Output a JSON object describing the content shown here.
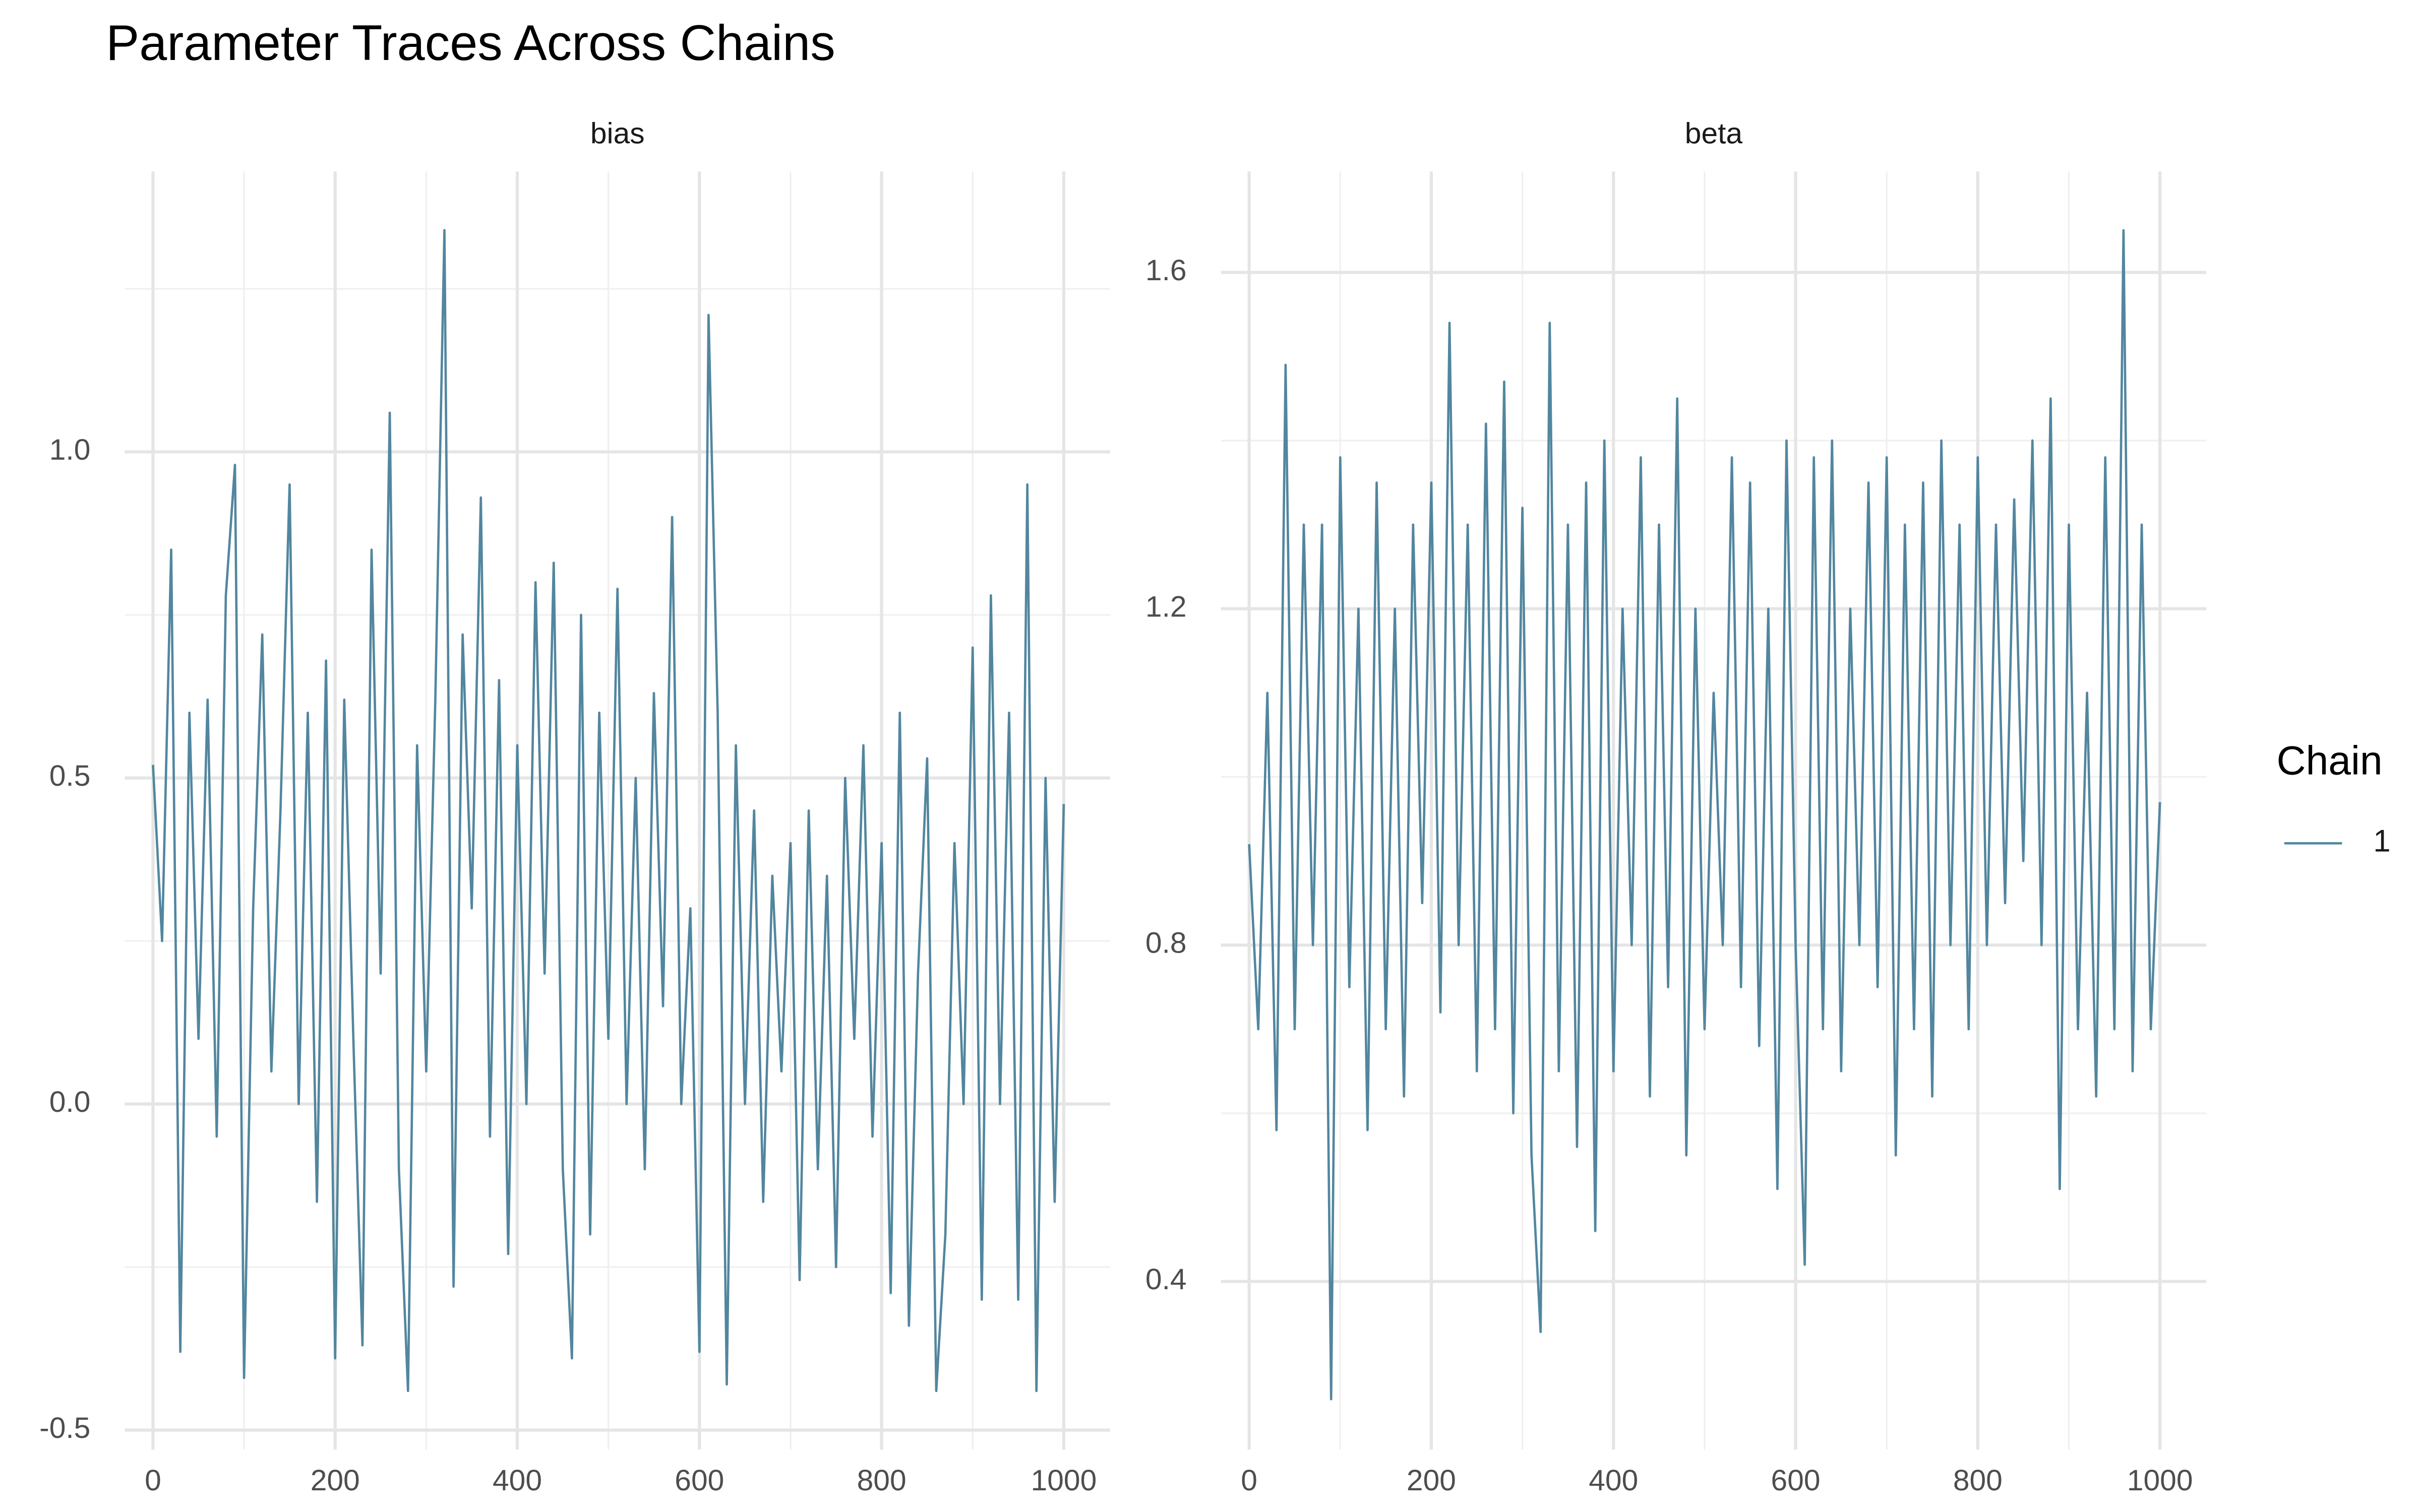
{
  "title": "Parameter Traces Across Chains",
  "legend_title": "Chain",
  "chart_data": [
    {
      "type": "line",
      "title": "bias",
      "x": [
        0,
        10,
        20,
        30,
        40,
        50,
        60,
        70,
        80,
        90,
        100,
        110,
        120,
        130,
        140,
        150,
        160,
        170,
        180,
        190,
        200,
        210,
        220,
        230,
        240,
        250,
        260,
        270,
        280,
        290,
        300,
        310,
        320,
        330,
        340,
        350,
        360,
        370,
        380,
        390,
        400,
        410,
        420,
        430,
        440,
        450,
        460,
        470,
        480,
        490,
        500,
        510,
        520,
        530,
        540,
        550,
        560,
        570,
        580,
        590,
        600,
        610,
        620,
        630,
        640,
        650,
        660,
        670,
        680,
        690,
        700,
        710,
        720,
        730,
        740,
        750,
        760,
        770,
        780,
        790,
        800,
        810,
        820,
        830,
        840,
        850,
        860,
        870,
        880,
        890,
        900,
        910,
        920,
        930,
        940,
        950,
        960,
        970,
        980,
        990,
        1000
      ],
      "series": [
        {
          "name": "1",
          "color": "#52869f",
          "values": [
            0.52,
            0.25,
            0.85,
            -0.38,
            0.6,
            0.1,
            0.62,
            -0.05,
            0.78,
            0.98,
            -0.42,
            0.3,
            0.72,
            0.05,
            0.45,
            0.95,
            0.0,
            0.6,
            -0.15,
            0.68,
            -0.39,
            0.62,
            0.1,
            -0.37,
            0.85,
            0.2,
            1.06,
            -0.1,
            -0.44,
            0.55,
            0.05,
            0.62,
            1.34,
            -0.28,
            0.72,
            0.3,
            0.93,
            -0.05,
            0.65,
            -0.23,
            0.55,
            0.0,
            0.8,
            0.2,
            0.83,
            -0.1,
            -0.39,
            0.75,
            -0.2,
            0.6,
            0.1,
            0.79,
            0.0,
            0.5,
            -0.1,
            0.63,
            0.15,
            0.9,
            0.0,
            0.3,
            -0.38,
            1.21,
            0.6,
            -0.43,
            0.55,
            0.0,
            0.45,
            -0.15,
            0.35,
            0.05,
            0.4,
            -0.27,
            0.45,
            -0.1,
            0.35,
            -0.25,
            0.5,
            0.1,
            0.55,
            -0.05,
            0.4,
            -0.29,
            0.6,
            -0.34,
            0.2,
            0.53,
            -0.44,
            -0.2,
            0.4,
            0.0,
            0.7,
            -0.3,
            0.78,
            0.0,
            0.6,
            -0.3,
            0.95,
            -0.44,
            0.5,
            -0.15,
            0.46
          ]
        }
      ],
      "xlim": [
        -31,
        1051
      ],
      "xticks": [
        0,
        200,
        400,
        600,
        800,
        1000
      ],
      "xminor": [
        100,
        300,
        500,
        700,
        900
      ],
      "ylim": [
        -0.53,
        1.43
      ],
      "yticks": [
        -0.5,
        {
          "value": 0,
          "label": "0.0"
        },
        0.5,
        {
          "value": 1,
          "label": "1.0"
        }
      ],
      "yminor": [
        -0.25,
        0.25,
        0.75,
        1.25
      ],
      "grid": true
    },
    {
      "type": "line",
      "title": "beta",
      "x": [
        0,
        10,
        20,
        30,
        40,
        50,
        60,
        70,
        80,
        90,
        100,
        110,
        120,
        130,
        140,
        150,
        160,
        170,
        180,
        190,
        200,
        210,
        220,
        230,
        240,
        250,
        260,
        270,
        280,
        290,
        300,
        310,
        320,
        330,
        340,
        350,
        360,
        370,
        380,
        390,
        400,
        410,
        420,
        430,
        440,
        450,
        460,
        470,
        480,
        490,
        500,
        510,
        520,
        530,
        540,
        550,
        560,
        570,
        580,
        590,
        600,
        610,
        620,
        630,
        640,
        650,
        660,
        670,
        680,
        690,
        700,
        710,
        720,
        730,
        740,
        750,
        760,
        770,
        780,
        790,
        800,
        810,
        820,
        830,
        840,
        850,
        860,
        870,
        880,
        890,
        900,
        910,
        920,
        930,
        940,
        950,
        960,
        970,
        980,
        990,
        1000
      ],
      "series": [
        {
          "color": "#52869f",
          "values": [
            0.92,
            0.7,
            1.1,
            0.58,
            1.49,
            0.7,
            1.3,
            0.8,
            1.3,
            0.26,
            1.38,
            0.75,
            1.2,
            0.58,
            1.35,
            0.7,
            1.2,
            0.62,
            1.3,
            0.85,
            1.35,
            0.72,
            1.54,
            0.8,
            1.3,
            0.65,
            1.42,
            0.7,
            1.47,
            0.6,
            1.32,
            0.55,
            0.34,
            1.54,
            0.65,
            1.3,
            0.56,
            1.35,
            0.46,
            1.4,
            0.65,
            1.2,
            0.8,
            1.38,
            0.62,
            1.3,
            0.75,
            1.45,
            0.55,
            1.2,
            0.7,
            1.1,
            0.8,
            1.38,
            0.75,
            1.35,
            0.68,
            1.2,
            0.51,
            1.4,
            0.8,
            0.42,
            1.38,
            0.7,
            1.4,
            0.65,
            1.2,
            0.8,
            1.35,
            0.75,
            1.38,
            0.55,
            1.3,
            0.7,
            1.35,
            0.62,
            1.4,
            0.8,
            1.3,
            0.7,
            1.38,
            0.8,
            1.3,
            0.85,
            1.33,
            0.9,
            1.4,
            0.8,
            1.45,
            0.51,
            1.3,
            0.7,
            1.1,
            0.62,
            1.38,
            0.7,
            1.65,
            0.65,
            1.3,
            0.7,
            0.97
          ]
        }
      ],
      "xlim": [
        -31,
        1051
      ],
      "xticks": [
        0,
        200,
        400,
        600,
        800,
        1000
      ],
      "xminor": [
        100,
        300,
        500,
        700,
        900
      ],
      "ylim": [
        0.2,
        1.72
      ],
      "yticks": [
        0.4,
        0.8,
        1.2,
        1.6
      ],
      "yminor": [
        0.6,
        1.0,
        1.4
      ],
      "grid": true
    }
  ]
}
